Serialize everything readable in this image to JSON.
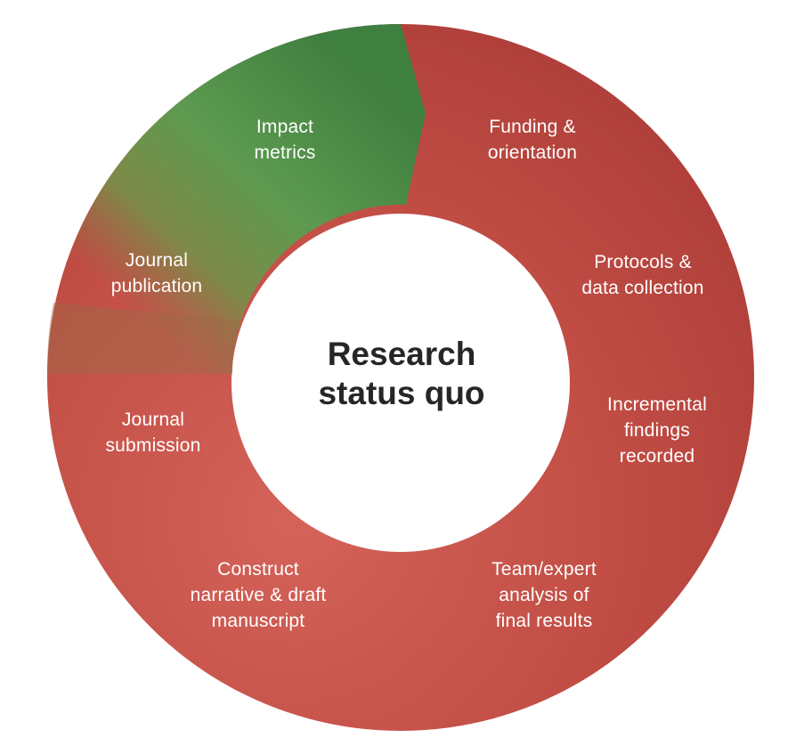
{
  "title": "Research\nstatus quo",
  "stages": [
    {
      "id": "funding",
      "label": "Funding &\norientation"
    },
    {
      "id": "protocols",
      "label": "Protocols &\ndata collection"
    },
    {
      "id": "incremental",
      "label": "Incremental\nfindings\nrecorded"
    },
    {
      "id": "team",
      "label": "Team/expert\nanalysis of\nfinal results"
    },
    {
      "id": "construct",
      "label": "Construct\nnarrative & draft\nmanuscript"
    },
    {
      "id": "submission",
      "label": "Journal\nsubmission"
    },
    {
      "id": "publication",
      "label": "Journal\npublication"
    },
    {
      "id": "impact",
      "label": "Impact\nmetrics"
    }
  ],
  "colors": {
    "red": "#b5433d",
    "red_light": "#cd5b4f",
    "green": "#4a8a45",
    "green_light": "#5a9a50",
    "text": "#ffffff",
    "center_text": "#262626"
  }
}
